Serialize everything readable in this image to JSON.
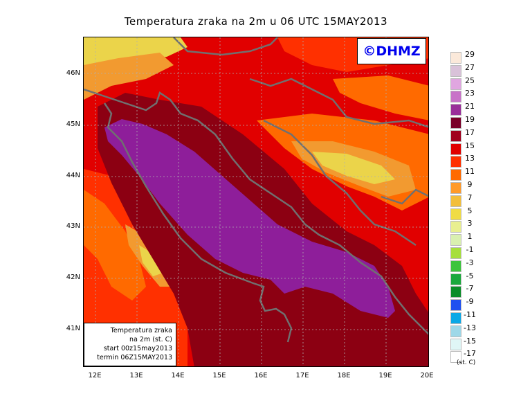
{
  "title": "Temperatura zraka na 2m u 06 UTC 15MAY2013",
  "logo": "©DHMZ",
  "info_box": {
    "line1": "Temperatura zraka",
    "line2": "na 2m (st. C)",
    "line3": "start 00z15may2013",
    "line4": "termin 06Z15MAY2013"
  },
  "lat_labels": [
    "46N",
    "45N",
    "44N",
    "43N",
    "42N",
    "41N"
  ],
  "lon_labels": [
    "12E",
    "13E",
    "14E",
    "15E",
    "16E",
    "17E",
    "18E",
    "19E",
    "20E"
  ],
  "legend": {
    "labels": [
      "29",
      "27",
      "25",
      "23",
      "21",
      "19",
      "17",
      "15",
      "13",
      "11",
      "9",
      "7",
      "5",
      "3",
      "1",
      "-1",
      "-3",
      "-5",
      "-7",
      "-9",
      "-11",
      "-13",
      "-15",
      "-17"
    ],
    "colors": [
      "#fbe9da",
      "#d9c2d9",
      "#e0a6e0",
      "#c872c8",
      "#9a2f9a",
      "#7a0028",
      "#a0001e",
      "#e10000",
      "#ff3000",
      "#ff6a00",
      "#ff9a2a",
      "#f2be3c",
      "#f0dc45",
      "#e9ef90",
      "#d9f0b0",
      "#a6df3c",
      "#3cc43c",
      "#1aa83c",
      "#0a8c28",
      "#1e50f0",
      "#0aa8e6",
      "#9ed8e8",
      "#dff6f6",
      "#ffffff"
    ],
    "unit": "(st. C)"
  },
  "colors": {
    "sea_purple": "#8e1e9a",
    "deep_red": "#8c0012",
    "red": "#e10000",
    "orange": "#ff6a00",
    "light_orange": "#f29a30",
    "yellow": "#ebd44a",
    "coast": "#707070"
  }
}
